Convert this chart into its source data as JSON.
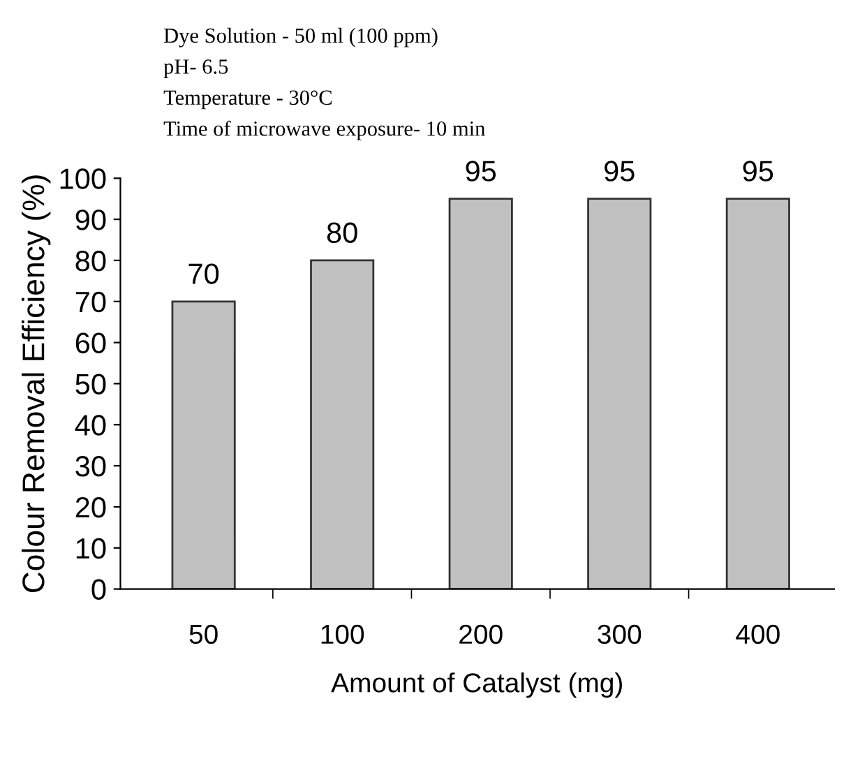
{
  "chart_data": {
    "type": "bar",
    "xlabel": "Amount of Catalyst (mg)",
    "ylabel": "Colour Removal Efficiency (%)",
    "categories": [
      "50",
      "100",
      "200",
      "300",
      "400"
    ],
    "values": [
      70,
      80,
      95,
      95,
      95
    ],
    "color": "#c0c0c0",
    "data_labels": true,
    "ylim": [
      0,
      100
    ],
    "yticks": [
      0,
      10,
      20,
      30,
      40,
      50,
      60,
      70,
      80,
      90,
      100
    ],
    "grid": false,
    "legend": false,
    "annotations": [
      "Dye Solution - 50 ml (100 ppm)",
      "pH- 6.5",
      "Temperature - 30°C",
      "Time of microwave exposure- 10 min"
    ]
  }
}
